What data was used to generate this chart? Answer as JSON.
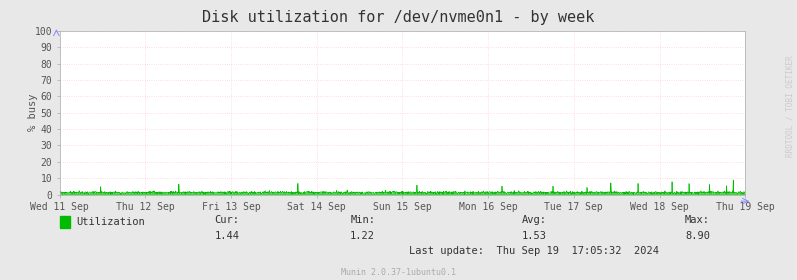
{
  "title": "Disk utilization for /dev/nvme0n1 - by week",
  "ylabel": "% busy",
  "background_color": "#e8e8e8",
  "plot_bg_color": "#ffffff",
  "line_color": "#00bb00",
  "fill_color": "#00bb00",
  "ylim": [
    0,
    100
  ],
  "yticks": [
    0,
    10,
    20,
    30,
    40,
    50,
    60,
    70,
    80,
    90,
    100
  ],
  "x_labels": [
    "Wed 11 Sep",
    "Thu 12 Sep",
    "Fri 13 Sep",
    "Sat 14 Sep",
    "Sun 15 Sep",
    "Mon 16 Sep",
    "Tue 17 Sep",
    "Wed 18 Sep",
    "Thu 19 Sep"
  ],
  "x_positions": [
    0,
    1,
    2,
    3,
    4,
    5,
    6,
    7,
    8
  ],
  "watermark": "RRDTOOL / TOBI OETIKER",
  "legend_label": "Utilization",
  "legend_color": "#00bb00",
  "footer_cur_label": "Cur:",
  "footer_cur_value": "1.44",
  "footer_min_label": "Min:",
  "footer_min_value": "1.22",
  "footer_avg_label": "Avg:",
  "footer_avg_value": "1.53",
  "footer_max_label": "Max:",
  "footer_max_value": "8.90",
  "footer_lastupdate": "Last update:  Thu Sep 19  17:05:32  2024",
  "footer_munin": "Munin 2.0.37-1ubuntu0.1",
  "title_fontsize": 11,
  "axis_label_fontsize": 7.5,
  "tick_fontsize": 7,
  "footer_fontsize": 7.5,
  "watermark_fontsize": 5.5
}
